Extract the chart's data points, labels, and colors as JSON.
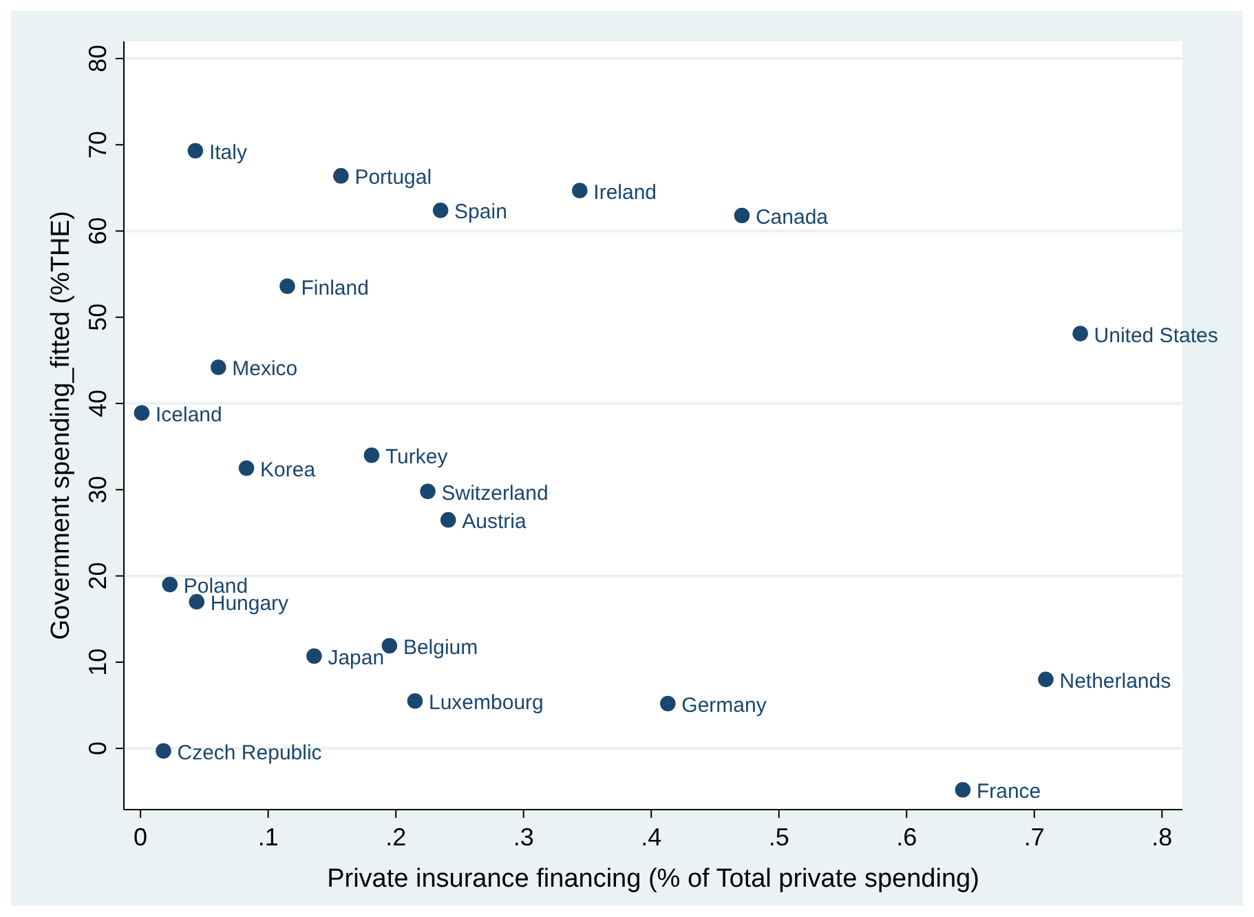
{
  "chart_data": {
    "type": "scatter",
    "xlabel": "Private insurance financing (% of Total private spending)",
    "ylabel": "Government spending_fitted (%THE)",
    "x": [
      0.043,
      0.157,
      0.235,
      0.344,
      0.471,
      0.115,
      0.736,
      0.061,
      0.001,
      0.083,
      0.181,
      0.225,
      0.241,
      0.023,
      0.044,
      0.136,
      0.195,
      0.215,
      0.413,
      0.709,
      0.018,
      0.644
    ],
    "series": [
      {
        "color": "#1a476f",
        "values": [
          69.3,
          66.4,
          62.4,
          64.7,
          61.8,
          53.6,
          48.1,
          44.2,
          38.9,
          32.5,
          34.0,
          29.8,
          26.5,
          19.0,
          17.0,
          10.7,
          11.9,
          5.5,
          5.2,
          8.0,
          -0.3,
          -4.8
        ]
      }
    ],
    "annotations": [
      {
        "text": "Italy",
        "x": 0.043,
        "y": 69.3
      },
      {
        "text": "Portugal",
        "x": 0.157,
        "y": 66.4
      },
      {
        "text": "Spain",
        "x": 0.235,
        "y": 62.4
      },
      {
        "text": "Ireland",
        "x": 0.344,
        "y": 64.7
      },
      {
        "text": "Canada",
        "x": 0.471,
        "y": 61.8
      },
      {
        "text": "Finland",
        "x": 0.115,
        "y": 53.6
      },
      {
        "text": "United States",
        "x": 0.736,
        "y": 48.1
      },
      {
        "text": "Mexico",
        "x": 0.061,
        "y": 44.2
      },
      {
        "text": "Iceland",
        "x": 0.001,
        "y": 38.9
      },
      {
        "text": "Korea",
        "x": 0.083,
        "y": 32.5
      },
      {
        "text": "Turkey",
        "x": 0.181,
        "y": 34.0
      },
      {
        "text": "Switzerland",
        "x": 0.225,
        "y": 29.8
      },
      {
        "text": "Austria",
        "x": 0.241,
        "y": 26.5
      },
      {
        "text": "Poland",
        "x": 0.023,
        "y": 19.0
      },
      {
        "text": "Hungary",
        "x": 0.044,
        "y": 17.0
      },
      {
        "text": "Japan",
        "x": 0.136,
        "y": 10.7
      },
      {
        "text": "Belgium",
        "x": 0.195,
        "y": 11.9
      },
      {
        "text": "Luxembourg",
        "x": 0.215,
        "y": 5.5
      },
      {
        "text": "Germany",
        "x": 0.413,
        "y": 5.2
      },
      {
        "text": "Netherlands",
        "x": 0.709,
        "y": 8.0
      },
      {
        "text": "Czech Republic",
        "x": 0.018,
        "y": -0.3
      },
      {
        "text": "France",
        "x": 0.644,
        "y": -4.8
      }
    ],
    "xlim": [
      -0.013,
      0.816
    ],
    "ylim": [
      -7.1,
      82
    ],
    "xticks": [
      0,
      {
        "value": 0.1,
        "label": ".1"
      },
      {
        "value": 0.2,
        "label": ".2"
      },
      {
        "value": 0.3,
        "label": ".3"
      },
      {
        "value": 0.4,
        "label": ".4"
      },
      {
        "value": 0.5,
        "label": ".5"
      },
      {
        "value": 0.6,
        "label": ".6"
      },
      {
        "value": 0.7,
        "label": ".7"
      },
      {
        "value": 0.8,
        "label": ".8"
      }
    ],
    "yticks": [
      0,
      10,
      20,
      30,
      40,
      50,
      60,
      70,
      80
    ],
    "grid": "y",
    "marker": "circle"
  }
}
